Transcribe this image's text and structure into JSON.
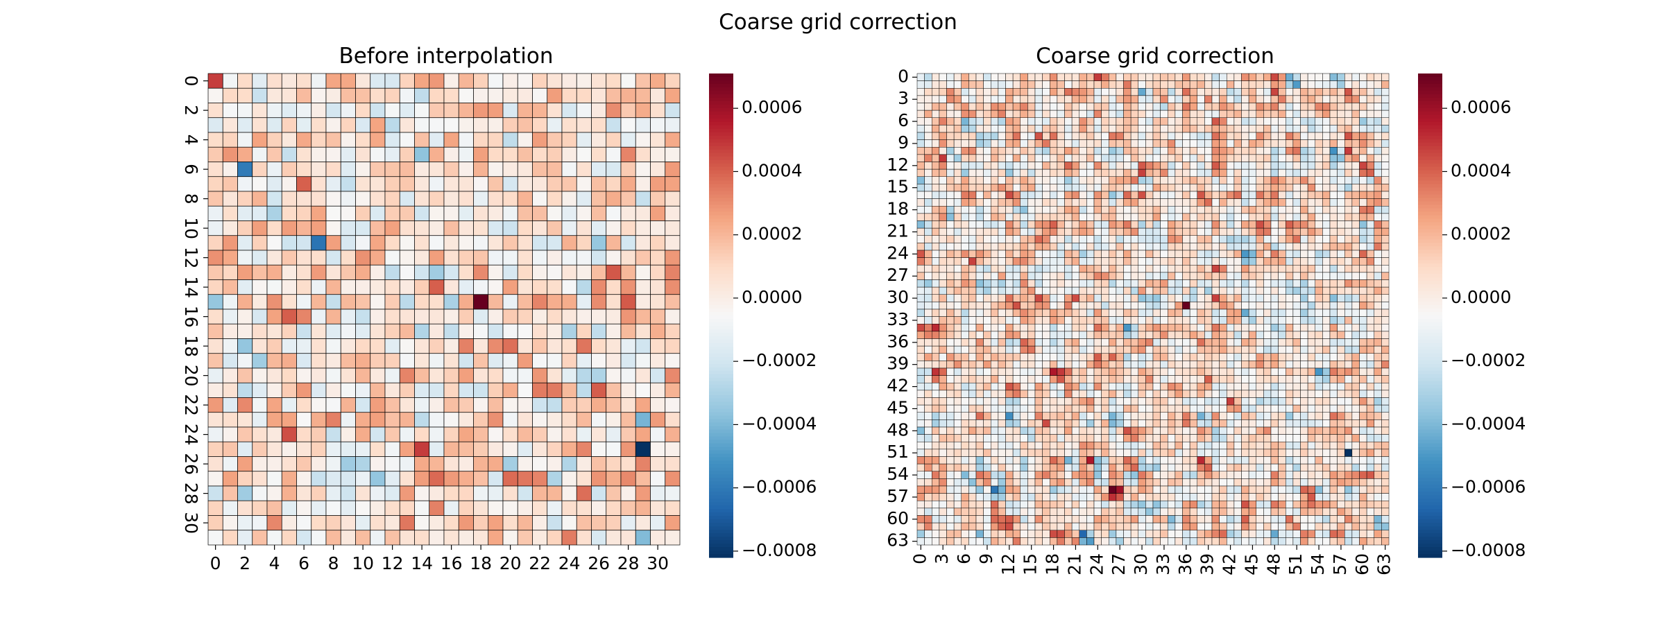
{
  "figure": {
    "suptitle": "Coarse grid correction"
  },
  "chart_data": [
    {
      "type": "heatmap",
      "title": "Before interpolation",
      "rows": 32,
      "cols": 32,
      "x_ticks": [
        0,
        2,
        4,
        6,
        8,
        10,
        12,
        14,
        16,
        18,
        20,
        22,
        24,
        26,
        28,
        30
      ],
      "y_ticks": [
        0,
        2,
        4,
        6,
        8,
        10,
        12,
        14,
        16,
        18,
        20,
        22,
        24,
        26,
        28,
        30
      ],
      "colormap": "RdBu_r",
      "vmin": -0.00082,
      "vmax": 0.00071,
      "colorbar_ticks": [
        0.0006,
        0.0004,
        0.0002,
        0.0,
        -0.0002,
        -0.0004,
        -0.0006,
        -0.0008
      ],
      "colorbar_labels": [
        "0.0006",
        "0.0004",
        "0.0002",
        "0.0000",
        "−0.0002",
        "−0.0004",
        "−0.0006",
        "−0.0008"
      ],
      "max_cell": {
        "row": 15,
        "col": 18,
        "value": 0.00071
      },
      "min_cell": {
        "row": 25,
        "col": 29,
        "value": -0.00082
      },
      "cell_grid": true
    },
    {
      "type": "heatmap",
      "title": "Coarse grid correction",
      "rows": 64,
      "cols": 64,
      "x_ticks": [
        0,
        3,
        6,
        9,
        12,
        15,
        18,
        21,
        24,
        27,
        30,
        33,
        36,
        39,
        42,
        45,
        48,
        51,
        54,
        57,
        60,
        63
      ],
      "y_ticks": [
        0,
        3,
        6,
        9,
        12,
        15,
        18,
        21,
        24,
        27,
        30,
        33,
        36,
        39,
        42,
        45,
        48,
        51,
        54,
        57,
        60,
        63
      ],
      "x_tick_rotation": 90,
      "colormap": "RdBu_r",
      "vmin": -0.00082,
      "vmax": 0.00071,
      "colorbar_ticks": [
        0.0006,
        0.0004,
        0.0002,
        0.0,
        -0.0002,
        -0.0004,
        -0.0006,
        -0.0008
      ],
      "colorbar_labels": [
        "0.0006",
        "0.0004",
        "0.0002",
        "0.0000",
        "−0.0002",
        "−0.0004",
        "−0.0006",
        "−0.0008"
      ],
      "max_cell": {
        "row": 31,
        "col": 36,
        "value": 0.00071
      },
      "min_cell": {
        "row": 51,
        "col": 58,
        "value": -0.00082
      },
      "cell_grid": true
    }
  ]
}
